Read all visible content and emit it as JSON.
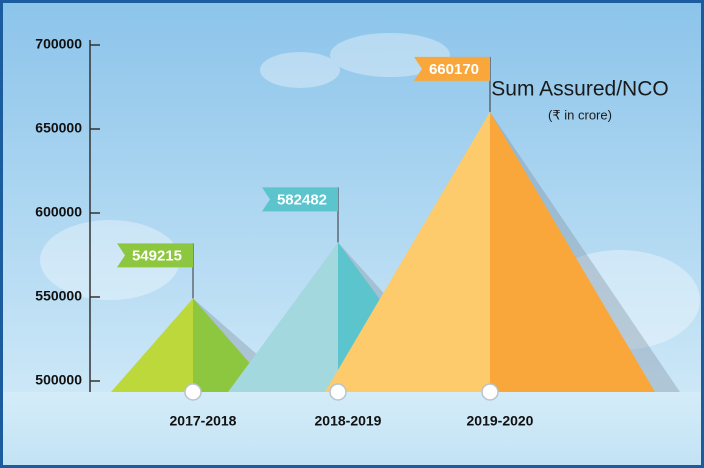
{
  "chart_data": {
    "type": "pyramid",
    "title": "Sum Assured/NCO",
    "subtitle": "(₹ in crore)",
    "categories": [
      "2017-2018",
      "2018-2019",
      "2019-2020"
    ],
    "values": [
      549215,
      582482,
      660170
    ],
    "colors": [
      "#8dc63f",
      "#5bc4cc",
      "#f9a73a"
    ],
    "light_colors": [
      "#bcd83a",
      "#a3d8df",
      "#fdca6c"
    ],
    "ylim": [
      500000,
      700000
    ],
    "yticks": [
      500000,
      550000,
      600000,
      650000,
      700000
    ]
  }
}
